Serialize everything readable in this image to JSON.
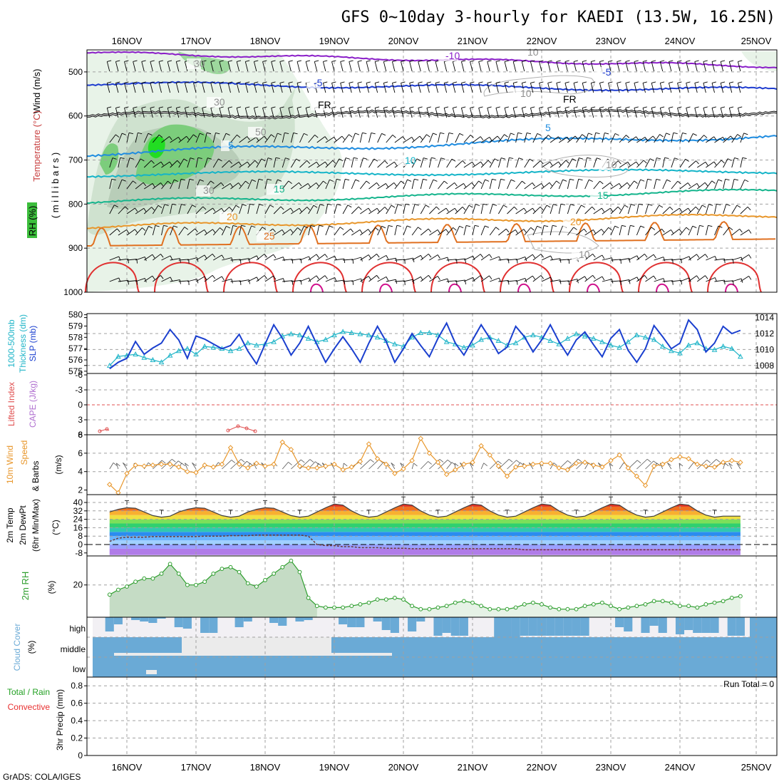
{
  "title": "GFS 0~10day 3-hourly for KAEDI (13.5W, 16.25N)",
  "credit": "GrADS: COLA/IGES",
  "dates": [
    "16NOV",
    "17NOV",
    "18NOV",
    "19NOV",
    "20NOV",
    "21NOV",
    "22NOV",
    "23NOV",
    "24NOV",
    "25NOV"
  ],
  "colors": {
    "rh_green": "#3cbe3c",
    "slp": "#1a3fcf",
    "thickness": "#20b5c8",
    "wind10m": "#e8962a",
    "rh2m": "#2e9e2e",
    "cloud": "#6aaad6",
    "precip_total": "#22a022",
    "precip_conv": "#e83030",
    "lifted": "#e05050",
    "cape": "#b070d0"
  },
  "labels": {
    "upper_wind": "Wind (m/s)",
    "upper_temp": "Temperature (°C)",
    "upper_rh": "RH (%)",
    "upper_pres": "( m i l l i b a r s )",
    "thick_1": "1000-500mb",
    "thick_2": "Thickness (dm)",
    "slp": "SLP (mb)",
    "lifted": "Lifted Index",
    "cape": "CAPE (J/kg)",
    "wind_1": "10m Wind",
    "wind_2": "Speed",
    "wind_3": "& Barbs",
    "wind_unit": "(m/s)",
    "temp_1": "2m Temp",
    "temp_2": "2m DewPt",
    "temp_3": "(6hr Min/Max)",
    "temp_unit": "(°C)",
    "rh2m": "2m RH",
    "rh_unit": "(%)",
    "cloud": "Cloud Cover",
    "cloud_unit": "(%)",
    "precip_1": "Total / Rain",
    "precip_2": "Convective",
    "precip_3": "3hr Precip (mm)",
    "run_total": "Run Total = 0",
    "cloud_high": "high",
    "cloud_middle": "middle",
    "cloud_low": "low"
  },
  "chart_data": [
    {
      "type": "line",
      "panel": "upper_air",
      "ylabel": "( m i l l i b a r s )",
      "y_ticks": [
        500,
        600,
        700,
        800,
        900,
        1000
      ],
      "ylim": [
        1000,
        450
      ],
      "y_scale": "pressure (inverted)",
      "isotherm_labels": [
        "-10",
        "-5",
        "FR",
        "5",
        "10",
        "15",
        "20",
        "25"
      ],
      "rh_labels": [
        "10",
        "30",
        "50"
      ],
      "wind_barbs": true
    },
    {
      "type": "line",
      "panel": "slp_thickness",
      "y_left_ticks": [
        575,
        576,
        577,
        578,
        579,
        580
      ],
      "y_right_ticks": [
        1008,
        1010,
        1012,
        1014
      ],
      "series": [
        {
          "name": "SLP (mb)",
          "axis": "right",
          "values": [
            1007.6,
            1008.4,
            1008.9,
            1011.0,
            1009.4,
            1010.2,
            1010.8,
            1012.5,
            1011.2,
            1008.9,
            1011.7,
            1011.3,
            1010.7,
            1010.1,
            1010.5,
            1011.9,
            1009.8,
            1008.2,
            1010.7,
            1013.1,
            1011.4,
            1009.3,
            1010.8,
            1012.9,
            1010.6,
            1008.4,
            1010.1,
            1011.6,
            1010.1,
            1008.4,
            1010.8,
            1012.9,
            1011.0,
            1008.4,
            1010.1,
            1012.0,
            1010.5,
            1009.1,
            1011.4,
            1013.3,
            1010.8,
            1009.3,
            1011.2,
            1013.1,
            1011.4,
            1009.5,
            1010.3,
            1012.9,
            1011.6,
            1009.7,
            1011.2,
            1013.1,
            1011.0,
            1009.3,
            1011.2,
            1012.2,
            1010.6,
            1009.1,
            1011.4,
            1012.5,
            1009.9,
            1008.4,
            1010.1,
            1013.0,
            1011.6,
            1010.1,
            1010.8,
            1013.7,
            1012.5,
            1009.7,
            1010.8,
            1012.9,
            1012.0,
            1012.4
          ],
          "note": ""
        },
        {
          "name": "1000-500mb Thickness (dm)",
          "axis": "left",
          "values": [
            575.5,
            576.3,
            576.4,
            576.5,
            576.2,
            576.0,
            575.8,
            576.4,
            576.8,
            577.0,
            576.5,
            577.2,
            577.1,
            577.0,
            576.8,
            577.0,
            577.5,
            577.3,
            577.4,
            577.6,
            578.1,
            578.3,
            578.2,
            577.9,
            577.6,
            577.8,
            578.2,
            578.5,
            578.4,
            578.3,
            578.2,
            578.0,
            577.7,
            577.4,
            577.2,
            578.0,
            578.4,
            578.4,
            578.2,
            577.6,
            577.4,
            577.1,
            577.3,
            577.8,
            578.0,
            577.7,
            577.3,
            577.5,
            578.0,
            578.2,
            578.0,
            577.7,
            577.4,
            577.9,
            578.3,
            578.1,
            577.9,
            577.6,
            577.3,
            577.1,
            577.6,
            578.2,
            578.0,
            577.8,
            577.2,
            576.8,
            576.6,
            577.3,
            577.5,
            577.0,
            576.9,
            577.2,
            577.0,
            576.3
          ]
        }
      ]
    },
    {
      "type": "line",
      "panel": "lifted_cape",
      "y_left_ticks": [
        -6,
        -3,
        0,
        3,
        6
      ],
      "y_right_ticks": [
        0,
        8
      ],
      "series": [
        {
          "name": "Lifted Index",
          "values": [],
          "points_shown": "small segments near 16NOV and 17-18NOV"
        }
      ]
    },
    {
      "type": "line",
      "panel": "wind10m",
      "ylabel": "(m/s)",
      "y_ticks": [
        2,
        4,
        6,
        8
      ],
      "ylim": [
        1.5,
        8
      ],
      "series": [
        {
          "name": "Speed",
          "values": [
            2.6,
            1.7,
            3.8,
            4.7,
            4.6,
            4.7,
            4.8,
            4.8,
            4.5,
            4.0,
            3.9,
            4.7,
            4.5,
            4.8,
            6.6,
            4.8,
            4.4,
            4.9,
            4.6,
            4.8,
            7.2,
            6.4,
            4.6,
            4.4,
            4.4,
            4.6,
            4.8,
            4.2,
            4.5,
            5.1,
            7.0,
            5.4,
            4.8,
            3.8,
            4.3,
            5.2,
            7.6,
            6.0,
            5.0,
            3.7,
            4.2,
            4.8,
            5.0,
            6.8,
            5.8,
            4.6,
            3.5,
            4.5,
            4.6,
            4.8,
            4.9,
            4.9,
            4.4,
            4.2,
            4.9,
            5.0,
            4.7,
            4.5,
            5.2,
            5.8,
            4.4,
            3.5,
            2.5,
            4.6,
            4.8,
            5.3,
            5.6,
            5.4,
            4.8,
            4.6,
            4.5,
            5.0,
            5.2,
            5.0
          ]
        }
      ]
    },
    {
      "type": "area",
      "panel": "temp_dewpt",
      "ylabel": "(°C)",
      "y_ticks": [
        -8,
        0,
        8,
        16,
        24,
        32,
        40
      ],
      "ylim": [
        -10,
        40
      ],
      "series": [
        {
          "name": "2m Temp",
          "values": [
            31,
            33.5,
            35,
            34.5,
            31,
            27.5,
            26,
            27,
            31,
            33.5,
            35,
            34.5,
            31,
            27.5,
            26,
            27,
            31,
            33.5,
            35,
            34.5,
            31,
            27.5,
            26,
            27,
            31,
            35,
            38.5,
            37.5,
            32,
            28,
            26,
            27,
            31,
            35,
            38.5,
            37.5,
            32,
            28,
            26,
            27,
            31,
            35,
            38.5,
            37.5,
            32,
            28,
            26,
            27,
            31,
            35,
            38.5,
            37.5,
            32,
            28,
            26,
            27,
            31,
            35,
            38.5,
            37.5,
            32,
            28,
            26,
            27,
            31,
            35,
            38.5,
            37.5,
            32,
            28,
            26,
            27,
            27,
            27
          ]
        },
        {
          "name": "2m DewPt",
          "values": [
            3,
            6,
            7,
            7,
            7,
            7.5,
            7.5,
            7.5,
            7.5,
            7.5,
            7.5,
            8,
            8,
            8,
            8.5,
            8.5,
            8.5,
            9,
            9,
            9,
            9,
            9,
            9,
            8,
            0,
            -1,
            -1,
            -2,
            -2,
            -3,
            -3,
            -3,
            -3.5,
            -3.5,
            -3.5,
            -4,
            -4,
            -4,
            -4,
            -4,
            -4,
            -4,
            -4,
            -4,
            -4,
            -4,
            -4,
            -4,
            -5,
            -5,
            -5,
            -5,
            -5,
            -5,
            -5,
            -5,
            -5,
            -5,
            -5,
            -5,
            -5,
            -5,
            -5,
            -5,
            -5,
            -5,
            -5,
            -5,
            -5,
            -5,
            -5,
            -5,
            -5,
            -5
          ]
        }
      ]
    },
    {
      "type": "area",
      "panel": "rh2m",
      "ylabel": "(%)",
      "y_ticks": [
        20
      ],
      "series": [
        {
          "name": "2m RH",
          "values": [
            14,
            17,
            19,
            22,
            24,
            24,
            27,
            33,
            27,
            20,
            20,
            22,
            27,
            30,
            31,
            28,
            21,
            19,
            23,
            27,
            31,
            35,
            28,
            12,
            7,
            6,
            6,
            6,
            7,
            8,
            9,
            11,
            11,
            12,
            11,
            7,
            5,
            5,
            6,
            7,
            9,
            10,
            9,
            7,
            5,
            5,
            5,
            6,
            8,
            9,
            8,
            6,
            5,
            5,
            5,
            7,
            8,
            9,
            7,
            5,
            6,
            7,
            8,
            10,
            10,
            9,
            7,
            7,
            6,
            8,
            9,
            10,
            12,
            13
          ]
        }
      ]
    },
    {
      "type": "bar",
      "panel": "cloud_cover",
      "ylabel": "(%)",
      "categories": [
        "high",
        "middle",
        "low"
      ]
    },
    {
      "type": "bar",
      "panel": "precip",
      "ylabel": "3hr Precip (mm)",
      "y_ticks": [
        0,
        0.2,
        0.4,
        0.6,
        0.8
      ],
      "ylim": [
        0,
        0.9
      ],
      "series": [
        {
          "name": "Total / Rain",
          "values": []
        },
        {
          "name": "Convective",
          "values": []
        }
      ]
    }
  ]
}
